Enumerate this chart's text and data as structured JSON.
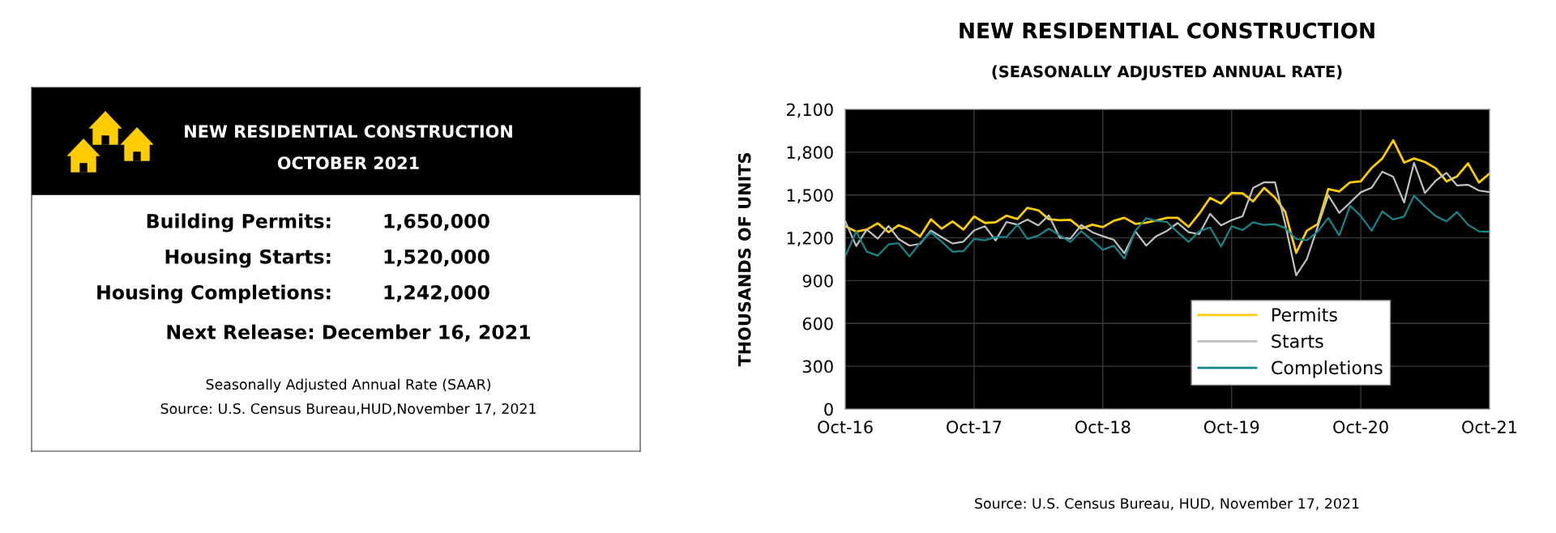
{
  "chart_data": [
    {
      "type": "other",
      "title": "NEW RESIDENTIAL CONSTRUCTION",
      "subtitle": "OCTOBER 2021",
      "annotations": [
        "Building Permits:",
        "1,650,000",
        "Housing Starts:",
        "1,520,000",
        "Housing Completions:",
        "1,242,000",
        "Next Release: December 16, 2021",
        "Seasonally Adjusted Annual Rate (SAAR)",
        "Source: U.S. Census Bureau,HUD,November 17, 2021"
      ]
    },
    {
      "type": "line",
      "title": "NEW RESIDENTIAL CONSTRUCTION",
      "subtitle": "(SEASONALLY ADJUSTED ANNUAL RATE)",
      "ylabel": "THOUSANDS OF UNITS",
      "x": [
        "2016-10",
        "2016-11",
        "2016-12",
        "2017-01",
        "2017-02",
        "2017-03",
        "2017-04",
        "2017-05",
        "2017-06",
        "2017-07",
        "2017-08",
        "2017-09",
        "2017-10",
        "2017-11",
        "2017-12",
        "2018-01",
        "2018-02",
        "2018-03",
        "2018-04",
        "2018-05",
        "2018-06",
        "2018-07",
        "2018-08",
        "2018-09",
        "2018-10",
        "2018-11",
        "2018-12",
        "2019-01",
        "2019-02",
        "2019-03",
        "2019-04",
        "2019-05",
        "2019-06",
        "2019-07",
        "2019-08",
        "2019-09",
        "2019-10",
        "2019-11",
        "2019-12",
        "2020-01",
        "2020-02",
        "2020-03",
        "2020-04",
        "2020-05",
        "2020-06",
        "2020-07",
        "2020-08",
        "2020-09",
        "2020-10",
        "2020-11",
        "2020-12",
        "2021-01",
        "2021-02",
        "2021-03",
        "2021-04",
        "2021-05",
        "2021-06",
        "2021-07",
        "2021-08",
        "2021-09",
        "2021-10"
      ],
      "series": [
        {
          "name": "Permits",
          "color": "#ffcc00",
          "values": [
            1281,
            1243,
            1258,
            1302,
            1239,
            1288,
            1258,
            1209,
            1330,
            1264,
            1315,
            1258,
            1349,
            1304,
            1309,
            1355,
            1332,
            1410,
            1393,
            1330,
            1323,
            1326,
            1264,
            1292,
            1275,
            1319,
            1340,
            1298,
            1306,
            1321,
            1340,
            1340,
            1277,
            1368,
            1480,
            1440,
            1514,
            1512,
            1455,
            1550,
            1481,
            1381,
            1094,
            1249,
            1296,
            1542,
            1525,
            1589,
            1595,
            1690,
            1756,
            1883,
            1727,
            1756,
            1731,
            1688,
            1595,
            1631,
            1722,
            1587,
            1650
          ]
        },
        {
          "name": "Starts",
          "color": "#c0c0c0",
          "values": [
            1315,
            1143,
            1258,
            1194,
            1283,
            1192,
            1145,
            1158,
            1251,
            1205,
            1160,
            1173,
            1251,
            1281,
            1181,
            1311,
            1292,
            1328,
            1287,
            1357,
            1201,
            1194,
            1290,
            1239,
            1211,
            1186,
            1092,
            1245,
            1145,
            1211,
            1249,
            1304,
            1239,
            1226,
            1368,
            1287,
            1324,
            1351,
            1550,
            1589,
            1589,
            1296,
            937,
            1050,
            1277,
            1498,
            1375,
            1447,
            1519,
            1551,
            1663,
            1627,
            1447,
            1725,
            1514,
            1599,
            1655,
            1567,
            1572,
            1531,
            1520
          ]
        },
        {
          "name": "Completions",
          "color": "#17868c",
          "values": [
            1069,
            1245,
            1103,
            1075,
            1154,
            1162,
            1069,
            1164,
            1239,
            1173,
            1103,
            1107,
            1192,
            1183,
            1205,
            1205,
            1292,
            1192,
            1215,
            1264,
            1217,
            1171,
            1247,
            1183,
            1116,
            1145,
            1054,
            1249,
            1338,
            1319,
            1311,
            1239,
            1171,
            1245,
            1273,
            1139,
            1281,
            1254,
            1309,
            1290,
            1296,
            1268,
            1192,
            1183,
            1243,
            1340,
            1217,
            1425,
            1353,
            1249,
            1385,
            1328,
            1349,
            1495,
            1419,
            1353,
            1315,
            1381,
            1292,
            1245,
            1242
          ]
        }
      ],
      "xlim": [
        "2016-10",
        "2021-10"
      ],
      "xticks": [
        {
          "value": "2016-10",
          "label": "Oct-16"
        },
        {
          "value": "2017-10",
          "label": "Oct-17"
        },
        {
          "value": "2018-10",
          "label": "Oct-18"
        },
        {
          "value": "2019-10",
          "label": "Oct-19"
        },
        {
          "value": "2020-10",
          "label": "Oct-20"
        },
        {
          "value": "2021-10",
          "label": "Oct-21"
        }
      ],
      "ylim": [
        0,
        2100
      ],
      "yticks": [
        {
          "value": 0,
          "label": "0"
        },
        {
          "value": 300,
          "label": "300"
        },
        {
          "value": 600,
          "label": "600"
        },
        {
          "value": 900,
          "label": "900"
        },
        {
          "value": 1200,
          "label": "1,200"
        },
        {
          "value": 1500,
          "label": "1,500"
        },
        {
          "value": 1800,
          "label": "1,800"
        },
        {
          "value": 2100,
          "label": "2,100"
        }
      ],
      "grid": true,
      "legend": "bottom right",
      "annotations": [
        "Source: U.S. Census Bureau, HUD, November 17, 2021"
      ]
    }
  ]
}
